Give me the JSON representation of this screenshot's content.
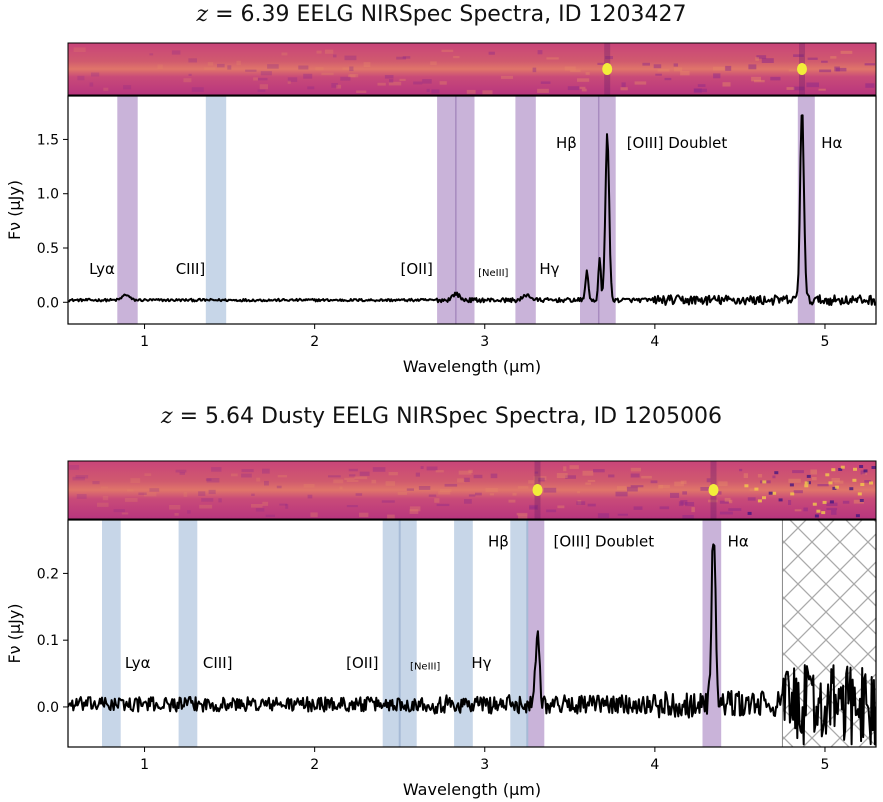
{
  "chart_data": [
    {
      "type": "line",
      "title_prefix": "z",
      "title": " = 6.39 EELG NIRSpec Spectra, ID 1203427",
      "xlabel": "Wavelength (μm)",
      "ylabel": "Fν (μJy)",
      "xlim": [
        0.55,
        5.3
      ],
      "ylim": [
        -0.2,
        1.9
      ],
      "xticks": [
        1,
        2,
        3,
        4,
        5
      ],
      "yticks": [
        0.0,
        0.5,
        1.0,
        1.5
      ],
      "ytick_labels": [
        "0.0",
        "0.5",
        "1.0",
        "1.5"
      ],
      "grid": false,
      "colors": {
        "purple_band": "#c9b3d9",
        "blue_band": "#c7d6e8",
        "line": "#000000"
      },
      "bands": [
        {
          "from": 0.84,
          "to": 0.96,
          "color": "purple"
        },
        {
          "from": 1.36,
          "to": 1.48,
          "color": "blue"
        },
        {
          "from": 2.72,
          "to": 2.94,
          "color": "purple"
        },
        {
          "from": 3.18,
          "to": 3.3,
          "color": "purple"
        },
        {
          "from": 3.56,
          "to": 3.77,
          "color": "purple"
        },
        {
          "from": 4.84,
          "to": 4.94,
          "color": "purple"
        }
      ],
      "line_labels": [
        {
          "text": "Lyα",
          "x": 0.75,
          "y": 0.26,
          "size": "normal"
        },
        {
          "text": "CIII]",
          "x": 1.27,
          "y": 0.26,
          "size": "normal"
        },
        {
          "text": "[OII]",
          "x": 2.6,
          "y": 0.26,
          "size": "normal"
        },
        {
          "text": "[NeIII]",
          "x": 3.05,
          "y": 0.24,
          "size": "small"
        },
        {
          "text": "Hγ",
          "x": 3.38,
          "y": 0.26,
          "size": "normal"
        },
        {
          "text": "Hβ",
          "x": 3.48,
          "y": 1.42,
          "size": "normal"
        },
        {
          "text": "[OIII] Doublet",
          "x": 4.13,
          "y": 1.42,
          "size": "normal"
        },
        {
          "text": "Hα",
          "x": 5.04,
          "y": 1.42,
          "size": "normal"
        }
      ],
      "peaks": [
        {
          "x": 0.89,
          "height": 0.05,
          "width": 0.02
        },
        {
          "x": 2.83,
          "height": 0.06,
          "width": 0.02
        },
        {
          "x": 3.25,
          "height": 0.05,
          "width": 0.02
        },
        {
          "x": 3.6,
          "height": 0.28,
          "width": 0.008
        },
        {
          "x": 3.675,
          "height": 0.38,
          "width": 0.007
        },
        {
          "x": 3.72,
          "height": 1.53,
          "width": 0.011
        },
        {
          "x": 4.865,
          "height": 1.78,
          "width": 0.011
        }
      ],
      "series": [
        {
          "values": []
        }
      ],
      "noise_segments": [
        {
          "from": 0.55,
          "to": 2.7,
          "amp": 0.012
        },
        {
          "from": 2.7,
          "to": 4.0,
          "amp": 0.02
        },
        {
          "from": 4.0,
          "to": 5.3,
          "amp": 0.045
        }
      ],
      "hatch_region": null
    },
    {
      "type": "line",
      "title_prefix": "z",
      "title": " = 5.64 Dusty EELG NIRSpec Spectra, ID 1205006",
      "xlabel": "Wavelength (μm)",
      "ylabel": "Fν (μJy)",
      "xlim": [
        0.55,
        5.3
      ],
      "ylim": [
        -0.06,
        0.28
      ],
      "xticks": [
        1,
        2,
        3,
        4,
        5
      ],
      "yticks": [
        0.0,
        0.1,
        0.2
      ],
      "ytick_labels": [
        "0.0",
        "0.1",
        "0.2"
      ],
      "grid": false,
      "colors": {
        "purple_band": "#c9b3d9",
        "blue_band": "#c7d6e8",
        "line": "#000000"
      },
      "bands": [
        {
          "from": 0.75,
          "to": 0.86,
          "color": "blue"
        },
        {
          "from": 1.2,
          "to": 1.31,
          "color": "blue"
        },
        {
          "from": 2.4,
          "to": 2.6,
          "color": "blue"
        },
        {
          "from": 2.82,
          "to": 2.93,
          "color": "blue"
        },
        {
          "from": 3.15,
          "to": 3.25,
          "color": "blue"
        },
        {
          "from": 3.25,
          "to": 3.35,
          "color": "purple"
        },
        {
          "from": 4.28,
          "to": 4.39,
          "color": "purple"
        }
      ],
      "line_labels": [
        {
          "text": "Lyα",
          "x": 0.96,
          "y": 0.058,
          "size": "normal"
        },
        {
          "text": "CIII]",
          "x": 1.43,
          "y": 0.058,
          "size": "normal"
        },
        {
          "text": "[OII]",
          "x": 2.28,
          "y": 0.058,
          "size": "normal"
        },
        {
          "text": "[NeIII]",
          "x": 2.65,
          "y": 0.056,
          "size": "small"
        },
        {
          "text": "Hγ",
          "x": 2.98,
          "y": 0.058,
          "size": "normal"
        },
        {
          "text": "Hβ",
          "x": 3.08,
          "y": 0.24,
          "size": "normal"
        },
        {
          "text": "[OIII] Doublet",
          "x": 3.7,
          "y": 0.24,
          "size": "normal"
        },
        {
          "text": "Hα",
          "x": 4.49,
          "y": 0.24,
          "size": "normal"
        }
      ],
      "peaks": [
        {
          "x": 3.31,
          "height": 0.11,
          "width": 0.012
        },
        {
          "x": 4.345,
          "height": 0.255,
          "width": 0.012
        }
      ],
      "series": [
        {
          "values": []
        }
      ],
      "noise_segments": [
        {
          "from": 0.55,
          "to": 2.7,
          "amp": 0.011
        },
        {
          "from": 2.7,
          "to": 4.0,
          "amp": 0.014
        },
        {
          "from": 4.0,
          "to": 4.75,
          "amp": 0.02
        },
        {
          "from": 4.75,
          "to": 5.3,
          "amp": 0.06
        }
      ],
      "hatch_region": {
        "from": 4.75,
        "to": 5.3
      }
    }
  ]
}
